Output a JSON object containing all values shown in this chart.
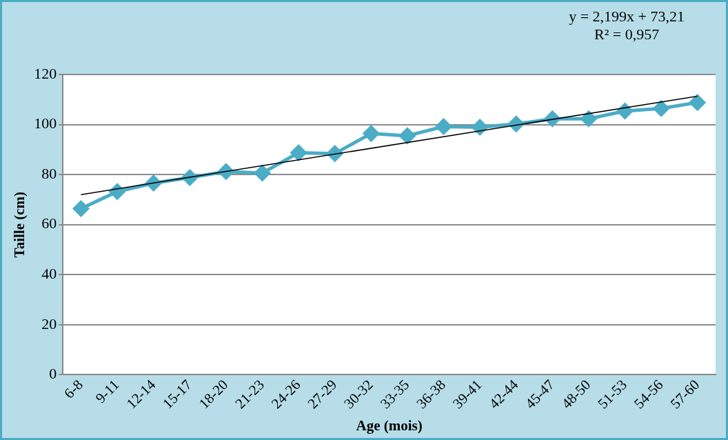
{
  "chart_data": {
    "type": "line",
    "xlabel": "Age (mois)",
    "ylabel": "Taille (cm)",
    "categories": [
      "6-8",
      "9-11",
      "12-14",
      "15-17",
      "18-20",
      "21-23",
      "24-26",
      "27-29",
      "30-32",
      "33-35",
      "36-38",
      "39-41",
      "42-44",
      "45-47",
      "48-50",
      "51-53",
      "54-56",
      "57-60"
    ],
    "series": [
      {
        "color": "#4bacc6",
        "values": [
          66.4,
          73.2,
          76.6,
          78.8,
          81.2,
          80.6,
          88.7,
          88.4,
          96.4,
          95.5,
          99.2,
          98.9,
          100.2,
          102.3,
          102.3,
          105.4,
          106.4,
          108.8
        ],
        "marker": "diamond"
      },
      {
        "type": "line",
        "color": "#000000",
        "x": [
          "6-8",
          "57-60"
        ],
        "values": [
          72,
          111.3
        ],
        "marker": "none"
      }
    ],
    "ylim": [
      0,
      120
    ],
    "yticks": [
      0,
      20,
      40,
      60,
      80,
      100,
      120
    ],
    "grid": "y",
    "legend": false,
    "annotations": [
      "y = 2,199x + 73,21",
      "R² = 0,957"
    ]
  }
}
